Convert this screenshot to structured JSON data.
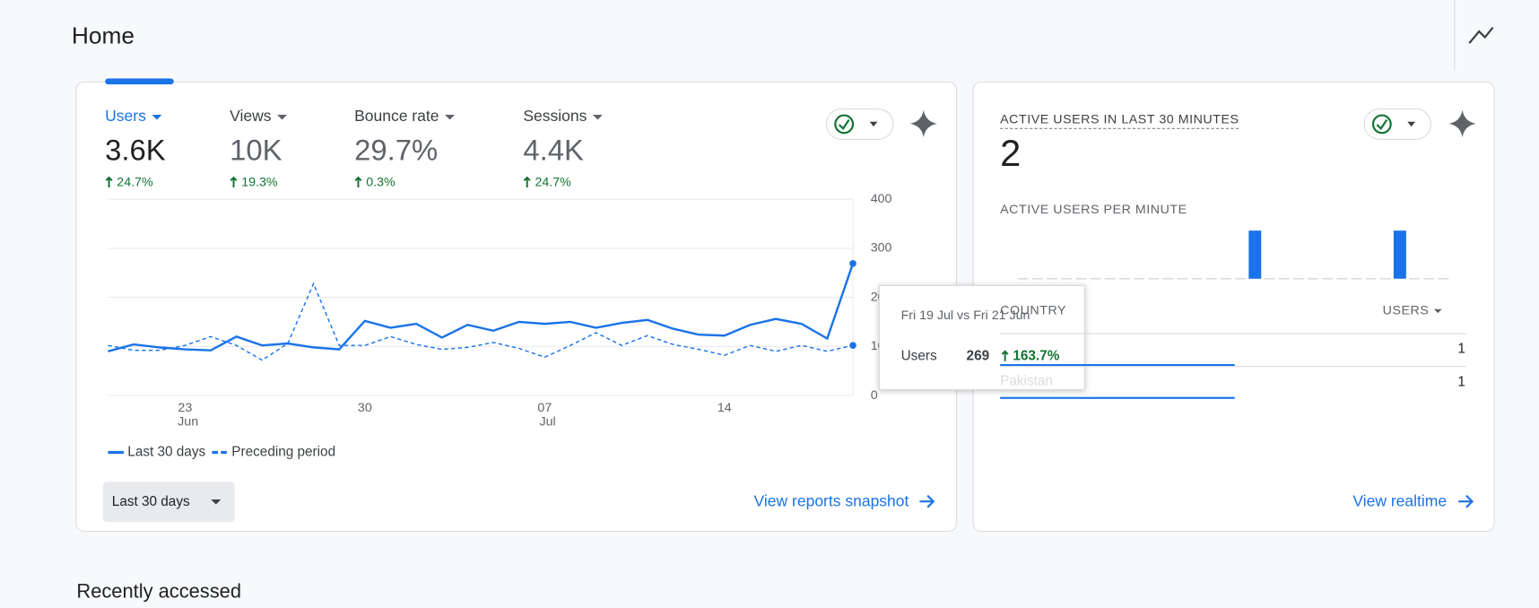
{
  "header": {
    "title": "Home"
  },
  "metrics": [
    {
      "name": "Users",
      "value": "3.6K",
      "change": "24.7%"
    },
    {
      "name": "Views",
      "value": "10K",
      "change": "19.3%"
    },
    {
      "name": "Bounce rate",
      "value": "29.7%",
      "change": "0.3%"
    },
    {
      "name": "Sessions",
      "value": "4.4K",
      "change": "24.7%"
    }
  ],
  "chart_data": {
    "type": "line",
    "categories": [
      null,
      null,
      null,
      "23",
      null,
      null,
      null,
      null,
      null,
      null,
      "30",
      null,
      null,
      null,
      null,
      null,
      null,
      "07",
      null,
      null,
      null,
      null,
      null,
      null,
      "14",
      null,
      null,
      null,
      null,
      null
    ],
    "months": [
      null,
      null,
      null,
      "Jun",
      null,
      null,
      null,
      null,
      null,
      null,
      null,
      null,
      null,
      null,
      null,
      null,
      null,
      "Jul",
      null,
      null,
      null,
      null,
      null,
      null,
      null,
      null,
      null,
      null,
      null,
      null
    ],
    "series": [
      {
        "name": "Last 30 days",
        "color": "#1a73e8",
        "dashed": false,
        "values": [
          90,
          104,
          98,
          94,
          92,
          120,
          102,
          106,
          98,
          94,
          152,
          138,
          146,
          118,
          144,
          132,
          150,
          146,
          150,
          138,
          148,
          154,
          136,
          124,
          122,
          144,
          156,
          146,
          116,
          269
        ]
      },
      {
        "name": "Preceding period",
        "color": "#1a73e8",
        "dashed": true,
        "values": [
          102,
          92,
          92,
          102,
          120,
          102,
          72,
          106,
          228,
          102,
          102,
          120,
          104,
          94,
          98,
          108,
          96,
          78,
          102,
          128,
          102,
          122,
          104,
          94,
          82,
          102,
          90,
          102,
          90,
          102
        ]
      }
    ],
    "ylim": [
      0,
      400
    ],
    "yticks": [
      0,
      100,
      200,
      300,
      400
    ],
    "grid": true
  },
  "date_range": "Last 30 days",
  "snapshot_link": "View reports snapshot",
  "tooltip": {
    "title": "Fri 19 Jul vs Fri 21 Jun",
    "metric": "Users",
    "change": "163.7%"
  },
  "realtime": {
    "title": "ACTIVE USERS IN LAST 30 MINUTES",
    "value": "2",
    "per_minute_title": "ACTIVE USERS PER MINUTE",
    "per_minute": {
      "type": "bar",
      "color": "#1a73e8",
      "values": [
        0,
        0,
        0,
        0,
        0,
        0,
        0,
        0,
        0,
        0,
        0,
        0,
        0,
        0,
        0,
        0,
        1,
        0,
        0,
        0,
        0,
        0,
        0,
        0,
        0,
        0,
        1,
        0,
        0,
        0
      ]
    },
    "table": {
      "columns": [
        "COUNTRY",
        "USERS"
      ],
      "rows": [
        [
          null,
          1
        ],
        [
          "Pakistan",
          1
        ]
      ]
    },
    "link": "View realtime"
  },
  "recent": {
    "title": "Recently accessed"
  }
}
